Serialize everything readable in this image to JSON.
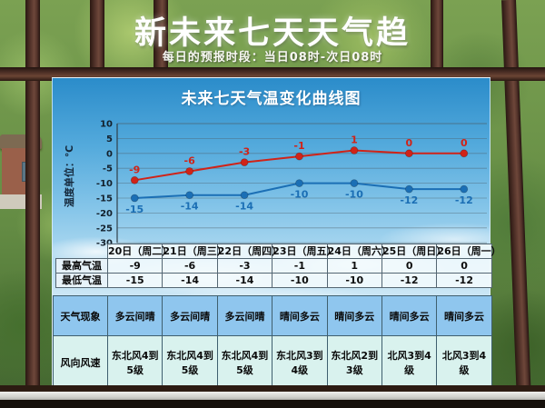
{
  "header": {
    "title": "新未来七天天气趋",
    "subtitle": "每日的预报时段：当日08时-次日08时"
  },
  "chart_data": {
    "type": "line",
    "title": "未来七天气温变化曲线图",
    "ylabel": "温度单位：℃",
    "xlabel": "",
    "categories": [
      "20日（周二）",
      "21日（周三）",
      "22日（周四）",
      "23日（周五）",
      "24日（周六）",
      "25日（周日）",
      "26日（周一）"
    ],
    "series": [
      {
        "name": "最高气温",
        "color": "#d02318",
        "values": [
          -9,
          -6,
          -3,
          -1,
          1,
          0,
          0
        ]
      },
      {
        "name": "最低气温",
        "color": "#1b6fb5",
        "values": [
          -15,
          -14,
          -14,
          -10,
          -10,
          -12,
          -12
        ]
      }
    ],
    "ylim": [
      -30,
      10
    ],
    "ytick_step": 5,
    "grid": true,
    "legend_position": "none"
  },
  "temp_table": {
    "columns": [
      "20日（周二）",
      "21日（周三）",
      "22日（周四）",
      "23日（周五）",
      "24日（周六）",
      "25日（周日）",
      "26日（周一）"
    ],
    "rows": [
      {
        "label": "最高气温",
        "values": [
          "-9",
          "-6",
          "-3",
          "-1",
          "1",
          "0",
          "0"
        ]
      },
      {
        "label": "最低气温",
        "values": [
          "-15",
          "-14",
          "-14",
          "-10",
          "-10",
          "-12",
          "-12"
        ]
      }
    ]
  },
  "condition_table": {
    "rows": [
      {
        "label": "天气现象",
        "values": [
          "多云间晴",
          "多云间晴",
          "多云间晴",
          "晴间多云",
          "晴间多云",
          "晴间多云",
          "晴间多云"
        ]
      },
      {
        "label": "风向风速",
        "values": [
          "东北风4到5级",
          "东北风4到5级",
          "东北风4到5级",
          "东北风3到4级",
          "东北风2到3级",
          "北风3到4级",
          "北风3到4级"
        ]
      }
    ]
  },
  "colors": {
    "max_series": "#d02318",
    "min_series": "#1b6fb5",
    "board_sky_top": "#2b8cca",
    "weather_row_bg": "#8fc6ee",
    "wind_row_bg": "#d9f2ee",
    "window_bar": "#53332a"
  }
}
